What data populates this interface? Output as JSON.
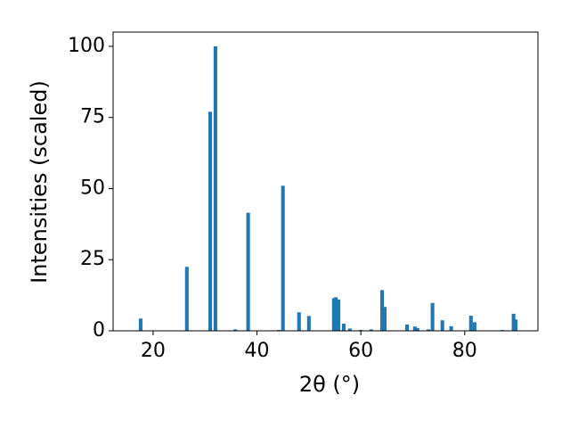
{
  "chart_data": {
    "type": "bar",
    "xlabel": "2θ (°)",
    "ylabel": "Intensities (scaled)",
    "color": "#1f77b4",
    "x": [
      17.6,
      26.5,
      31.0,
      32.0,
      35.8,
      38.3,
      44.2,
      45.0,
      48.1,
      50.0,
      54.8,
      55.2,
      55.7,
      56.7,
      57.9,
      60.0,
      62.0,
      64.1,
      64.6,
      68.9,
      70.4,
      70.9,
      73.0,
      73.8,
      75.7,
      77.4,
      81.2,
      81.9,
      87.2,
      89.4,
      89.8
    ],
    "values": [
      4.3,
      22.5,
      77,
      100,
      0.5,
      41.5,
      0.3,
      51,
      6.5,
      5.2,
      11.5,
      11.8,
      11,
      2.5,
      0.8,
      0.3,
      0.5,
      14.3,
      8.4,
      2.2,
      1.5,
      1,
      0.5,
      9.8,
      3.7,
      1.6,
      5.3,
      3,
      0.3,
      6,
      4
    ],
    "xlim": [
      12.3,
      94.1
    ],
    "ylim": [
      0,
      105
    ],
    "xticks": [
      20,
      40,
      60,
      80
    ],
    "yticks": [
      0,
      25,
      50,
      75,
      100
    ]
  }
}
